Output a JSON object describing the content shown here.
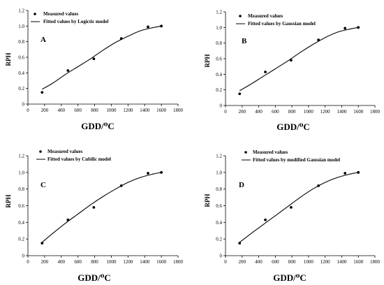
{
  "figure": {
    "panels": [
      {
        "id": "A",
        "letter": "A",
        "fit_label": "Fitted values by Logictic model",
        "measured_label": "Measured values",
        "xlabel": "GDD/⁰C",
        "ylabel": "RPH"
      },
      {
        "id": "B",
        "letter": "B",
        "fit_label": "Fitted values by Gaussian model",
        "measured_label": "Measured values",
        "xlabel": "GDD/⁰C",
        "ylabel": "RPH"
      },
      {
        "id": "C",
        "letter": "C",
        "fit_label": "Fitted values by Cubilic model",
        "measured_label": "Measured values",
        "xlabel": "GDD/⁰C",
        "ylabel": "RPH"
      },
      {
        "id": "D",
        "letter": "D",
        "fit_label": "Fitted values by modified Gaussian model",
        "measured_label": "Measured values",
        "xlabel": "GDD/⁰C",
        "ylabel": "RPH"
      }
    ]
  },
  "chart_data": [
    {
      "type": "scatter",
      "panel": "A",
      "xlabel": "GDD/⁰C",
      "ylabel": "RPH",
      "xlim": [
        0,
        1800
      ],
      "ylim": [
        0,
        1.2
      ],
      "xticks": [
        0,
        200,
        400,
        600,
        800,
        1000,
        1200,
        1400,
        1600,
        1800
      ],
      "yticks": [
        0,
        0.2,
        0.4,
        0.6,
        0.8,
        1.0,
        1.2
      ],
      "grid": false,
      "legend": "top-left",
      "series": [
        {
          "name": "Measured values",
          "kind": "points",
          "x": [
            170,
            480,
            790,
            1120,
            1440,
            1600
          ],
          "y": [
            0.15,
            0.43,
            0.58,
            0.84,
            0.99,
            1.0
          ]
        },
        {
          "name": "Fitted values by Logictic model",
          "kind": "line",
          "x": [
            170,
            300,
            450,
            600,
            750,
            900,
            1050,
            1200,
            1350,
            1500,
            1600
          ],
          "y": [
            0.19,
            0.27,
            0.38,
            0.48,
            0.58,
            0.69,
            0.79,
            0.87,
            0.94,
            0.98,
            1.0
          ]
        }
      ]
    },
    {
      "type": "scatter",
      "panel": "B",
      "xlabel": "GDD/⁰C",
      "ylabel": "RPH",
      "xlim": [
        0,
        1800
      ],
      "ylim": [
        0,
        1.2
      ],
      "xticks": [
        0,
        200,
        400,
        600,
        800,
        1000,
        1200,
        1400,
        1600,
        1800
      ],
      "yticks": [
        0,
        0.2,
        0.4,
        0.6,
        0.8,
        1.0,
        1.2
      ],
      "grid": false,
      "legend": "top-left",
      "series": [
        {
          "name": "Measured values",
          "kind": "points",
          "x": [
            170,
            480,
            790,
            1120,
            1440,
            1600
          ],
          "y": [
            0.15,
            0.43,
            0.58,
            0.84,
            0.99,
            1.0
          ]
        },
        {
          "name": "Fitted values by Gaussian model",
          "kind": "line",
          "x": [
            170,
            300,
            450,
            600,
            750,
            900,
            1050,
            1200,
            1350,
            1500,
            1600
          ],
          "y": [
            0.19,
            0.27,
            0.37,
            0.47,
            0.57,
            0.68,
            0.78,
            0.87,
            0.94,
            0.98,
            1.0
          ]
        }
      ]
    },
    {
      "type": "scatter",
      "panel": "C",
      "xlabel": "GDD/⁰C",
      "ylabel": "RPH",
      "xlim": [
        0,
        1800
      ],
      "ylim": [
        0,
        1.2
      ],
      "xticks": [
        0,
        200,
        400,
        600,
        800,
        1000,
        1200,
        1400,
        1600,
        1800
      ],
      "yticks": [
        0,
        0.2,
        0.4,
        0.6,
        0.8,
        1.0,
        1.2
      ],
      "grid": false,
      "legend": "top-left",
      "series": [
        {
          "name": "Measured values",
          "kind": "points",
          "x": [
            170,
            480,
            790,
            1120,
            1440,
            1600
          ],
          "y": [
            0.15,
            0.43,
            0.58,
            0.84,
            0.99,
            1.0
          ]
        },
        {
          "name": "Fitted values by Cubilic model",
          "kind": "line",
          "x": [
            170,
            300,
            450,
            600,
            750,
            900,
            1050,
            1200,
            1350,
            1500,
            1600
          ],
          "y": [
            0.16,
            0.27,
            0.39,
            0.5,
            0.61,
            0.71,
            0.8,
            0.88,
            0.94,
            0.98,
            1.0
          ]
        }
      ]
    },
    {
      "type": "scatter",
      "panel": "D",
      "xlabel": "GDD/⁰C",
      "ylabel": "RPH",
      "xlim": [
        0,
        1800
      ],
      "ylim": [
        0,
        1.2
      ],
      "xticks": [
        0,
        200,
        400,
        600,
        800,
        1000,
        1200,
        1400,
        1600,
        1800
      ],
      "yticks": [
        0,
        0.2,
        0.4,
        0.6,
        0.8,
        1.0,
        1.2
      ],
      "grid": false,
      "legend": "top-left",
      "series": [
        {
          "name": "Measured values",
          "kind": "points",
          "x": [
            170,
            480,
            790,
            1120,
            1440,
            1600
          ],
          "y": [
            0.15,
            0.43,
            0.58,
            0.84,
            0.99,
            1.0
          ]
        },
        {
          "name": "Fitted values by modified Gaussian model",
          "kind": "line",
          "x": [
            170,
            300,
            450,
            600,
            750,
            900,
            1050,
            1200,
            1350,
            1500,
            1600
          ],
          "y": [
            0.16,
            0.26,
            0.37,
            0.48,
            0.59,
            0.7,
            0.8,
            0.88,
            0.94,
            0.98,
            1.0
          ]
        }
      ]
    }
  ]
}
